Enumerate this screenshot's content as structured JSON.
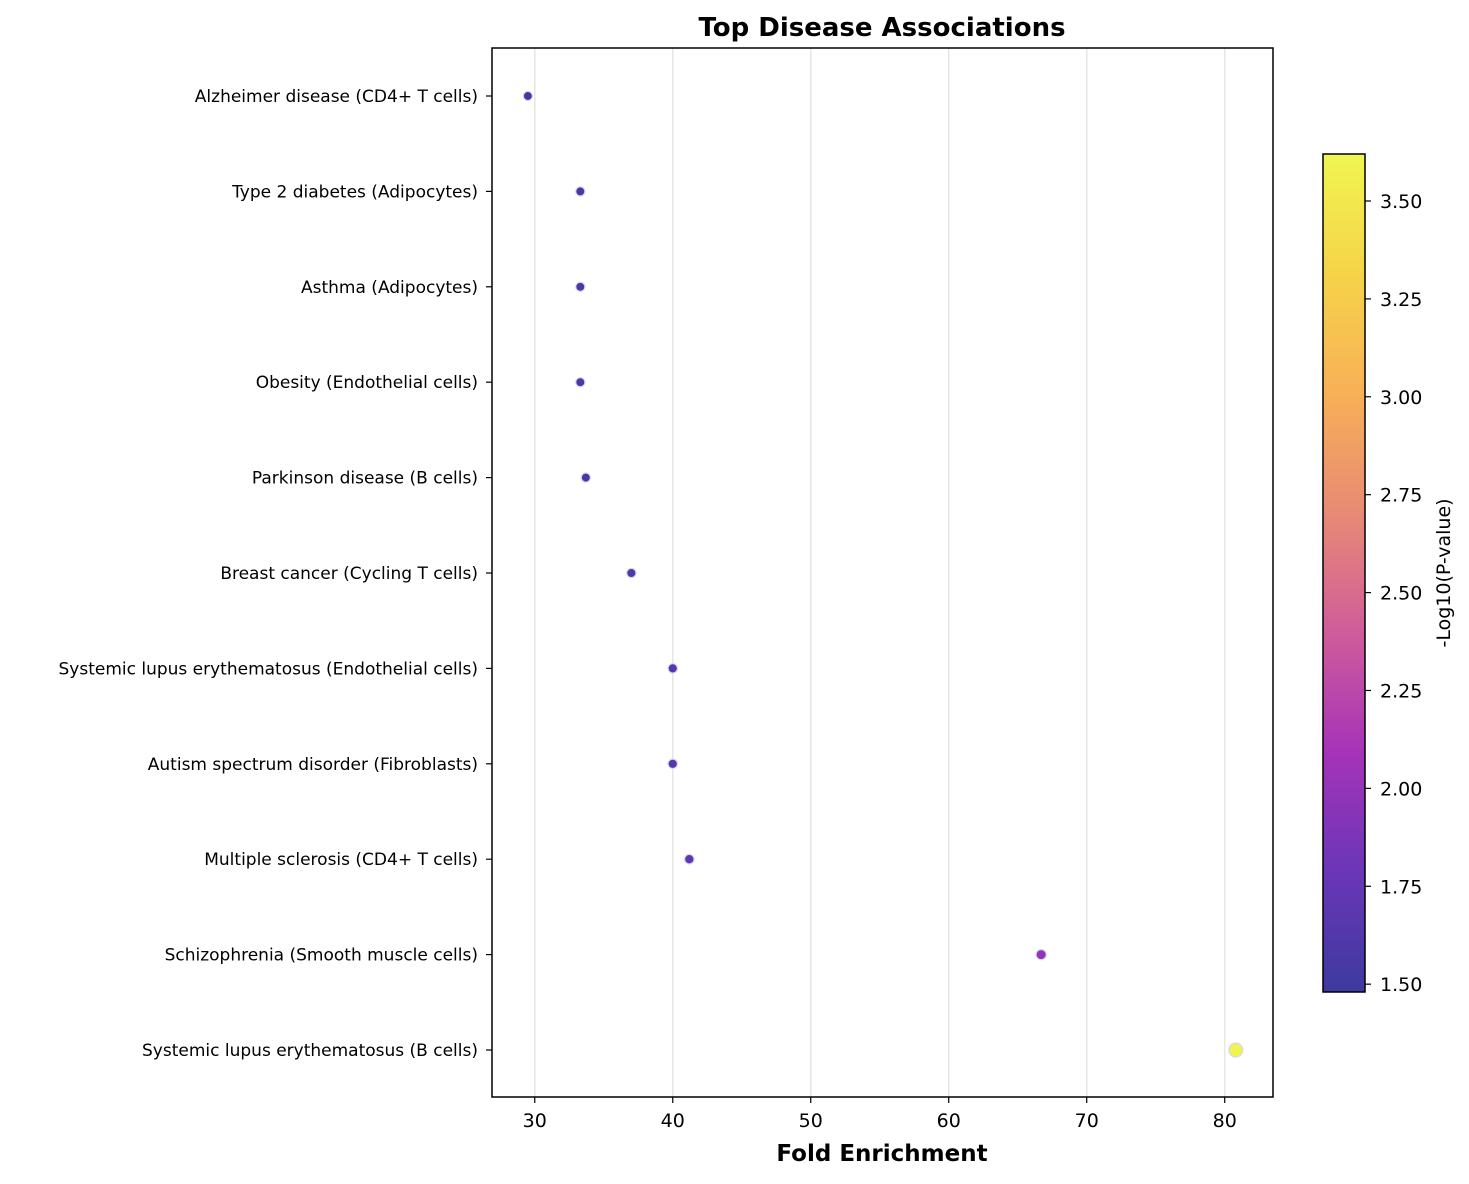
{
  "chart_data": {
    "type": "scatter",
    "title": "Top Disease Associations",
    "xlabel": "Fold Enrichment",
    "ylabel": "",
    "xlim": [
      26.9,
      83.5
    ],
    "x_ticks": [
      30,
      40,
      50,
      60,
      70,
      80
    ],
    "grid": "vertical",
    "categories": [
      "Alzheimer disease (CD4+ T cells)",
      "Type 2 diabetes (Adipocytes)",
      "Asthma (Adipocytes)",
      "Obesity (Endothelial cells)",
      "Parkinson disease (B cells)",
      "Breast cancer (Cycling T cells)",
      "Systemic lupus erythematosus (Endothelial cells)",
      "Autism spectrum disorder (Fibroblasts)",
      "Multiple sclerosis (CD4+ T cells)",
      "Schizophrenia (Smooth muscle cells)",
      "Systemic lupus erythematosus (B cells)"
    ],
    "points": [
      {
        "category": "Alzheimer disease (CD4+ T cells)",
        "fold_enrichment": 29.5,
        "neg_log10_p": 1.52
      },
      {
        "category": "Type 2 diabetes (Adipocytes)",
        "fold_enrichment": 33.3,
        "neg_log10_p": 1.55
      },
      {
        "category": "Asthma (Adipocytes)",
        "fold_enrichment": 33.3,
        "neg_log10_p": 1.55
      },
      {
        "category": "Obesity (Endothelial cells)",
        "fold_enrichment": 33.3,
        "neg_log10_p": 1.55
      },
      {
        "category": "Parkinson disease (B cells)",
        "fold_enrichment": 33.7,
        "neg_log10_p": 1.56
      },
      {
        "category": "Breast cancer (Cycling T cells)",
        "fold_enrichment": 37.0,
        "neg_log10_p": 1.6
      },
      {
        "category": "Systemic lupus erythematosus (Endothelial cells)",
        "fold_enrichment": 40.0,
        "neg_log10_p": 1.65
      },
      {
        "category": "Autism spectrum disorder (Fibroblasts)",
        "fold_enrichment": 40.0,
        "neg_log10_p": 1.65
      },
      {
        "category": "Multiple sclerosis (CD4+ T cells)",
        "fold_enrichment": 41.2,
        "neg_log10_p": 1.7
      },
      {
        "category": "Schizophrenia (Smooth muscle cells)",
        "fold_enrichment": 66.7,
        "neg_log10_p": 2.0
      },
      {
        "category": "Systemic lupus erythematosus (B cells)",
        "fold_enrichment": 80.8,
        "neg_log10_p": 3.6
      }
    ],
    "colorbar": {
      "label": "-Log10(P-value)",
      "colormap": "plasma",
      "range": [
        1.48,
        3.62
      ],
      "ticks": [
        "1.50",
        "1.75",
        "2.00",
        "2.25",
        "2.50",
        "2.75",
        "3.00",
        "3.25",
        "3.50"
      ]
    },
    "colors": {
      "axis": "#000000",
      "grid": "#e6e6e6",
      "marker_edge": "#d8d8ec",
      "colormap_stops": [
        "#3e3a9e",
        "#6a36b8",
        "#a633b8",
        "#cf5c9a",
        "#e88a75",
        "#f8b057",
        "#f5d448",
        "#f0f552"
      ]
    }
  }
}
